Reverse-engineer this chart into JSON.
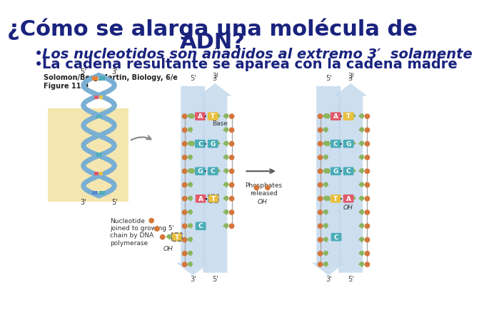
{
  "title_line1": "¿Cómo se alarga una molécula de",
  "title_line2": "ADN?",
  "bullet1": "Los nucleotidos son añadidos al extremo 3′  solamente",
  "bullet2": "La cadena resultante se aparea con la cadena madre",
  "caption": "Solomon/Berg/Martin, Biology, 6/e\nFigure 11.9",
  "bg_color": "#ffffff",
  "title_color": "#1a237e",
  "bullet1_color": "#1a237e",
  "bullet2_color": "#1a237e",
  "caption_color": "#222222",
  "title_fontsize": 22,
  "bullet_fontsize": 14,
  "caption_fontsize": 7,
  "helix_blue": "#7aafd4",
  "arrow_blue": "#c5d9ed",
  "base_A": "#e05a6a",
  "base_T": "#e8c040",
  "base_C": "#4aacb8",
  "base_G": "#4aacb8",
  "sugar_green": "#8ab55e",
  "phosphate_orange": "#d4763a",
  "note_color": "#333333"
}
